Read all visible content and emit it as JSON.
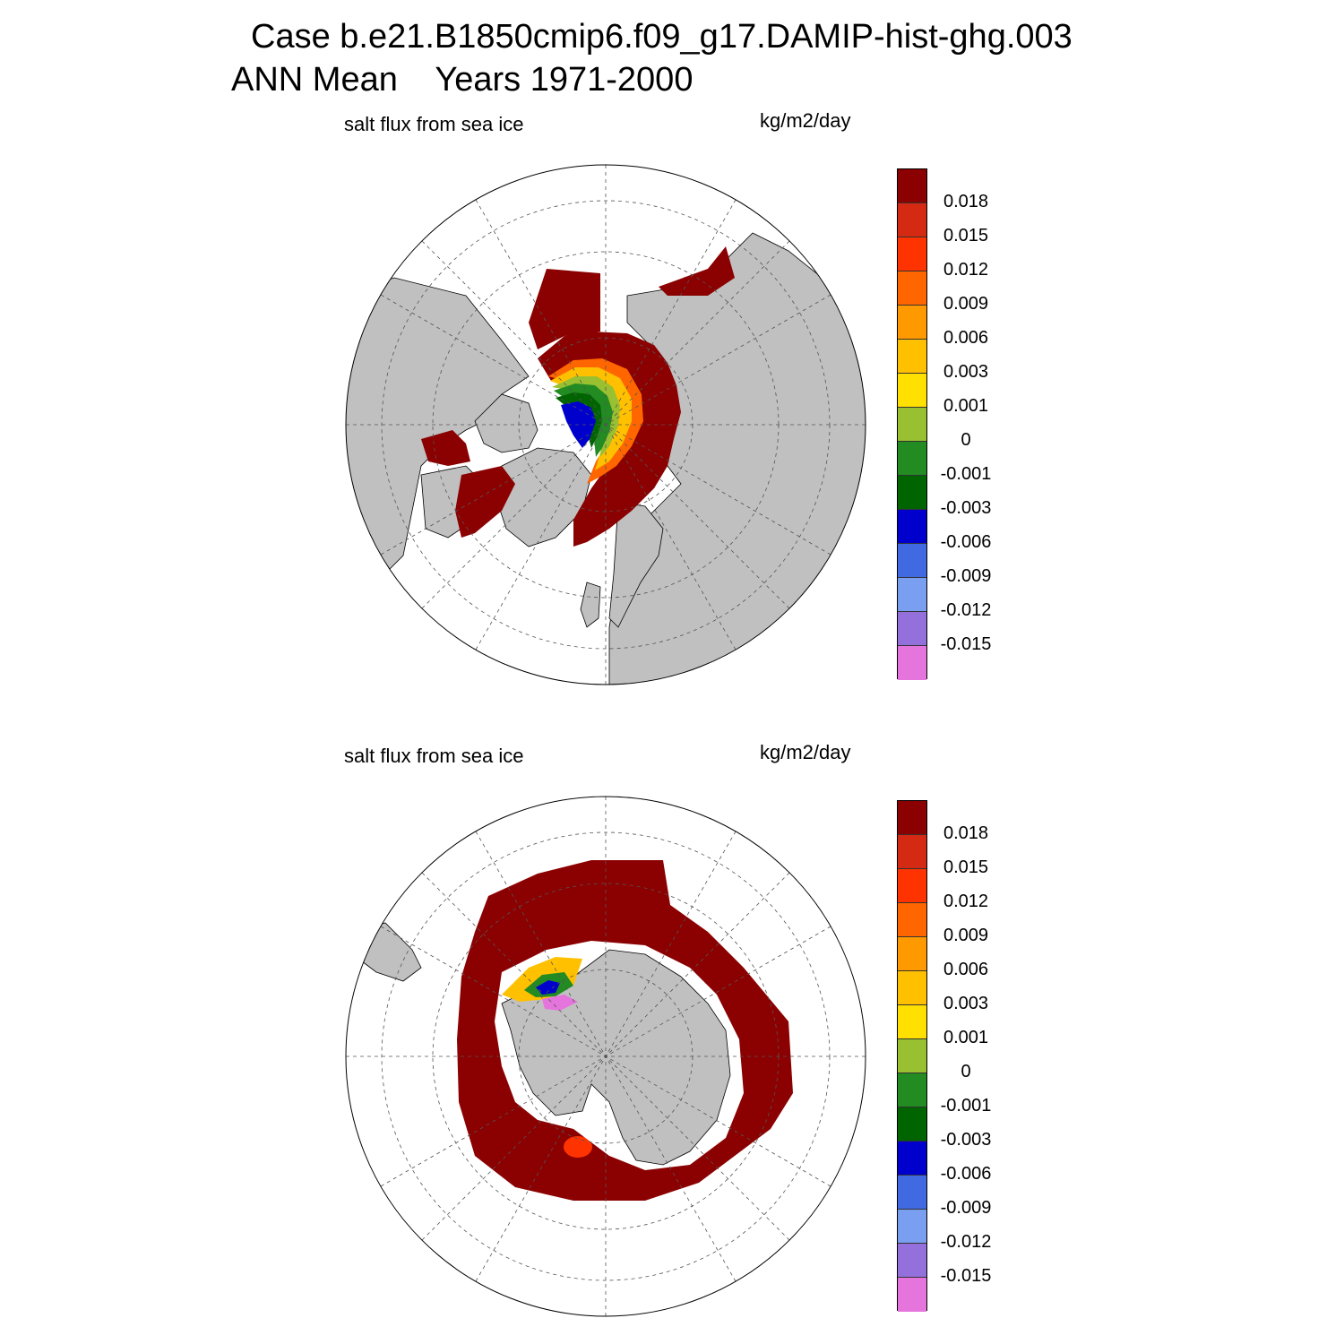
{
  "header": {
    "line1": "Case b.e21.B1850cmip6.f09_g17.DAMIP-hist-ghg.003",
    "line2": "ANN Mean    Years 1971-2000"
  },
  "panels": [
    {
      "id": "north",
      "hemisphere": "northern",
      "left_label": "salt flux from sea ice",
      "right_label": "kg/m2/day"
    },
    {
      "id": "south",
      "hemisphere": "southern",
      "left_label": "salt flux from sea ice",
      "right_label": "kg/m2/day"
    }
  ],
  "colorbar": {
    "labels": [
      "0.018",
      "0.015",
      "0.012",
      "0.009",
      "0.006",
      "0.003",
      "0.001",
      "0",
      "-0.001",
      "-0.003",
      "-0.006",
      "-0.009",
      "-0.012",
      "-0.015"
    ],
    "colors": [
      "#8b0000",
      "#d42a14",
      "#ff3300",
      "#ff6600",
      "#ff9900",
      "#ffc000",
      "#ffe000",
      "#99c030",
      "#228b22",
      "#006400",
      "#0000cd",
      "#4169e1",
      "#7b9ff0",
      "#9370db",
      "#e575dc"
    ]
  },
  "colors": {
    "land": "#c0c0c0",
    "ocean_no_ice": "#ffffff",
    "grid": "#555555"
  }
}
